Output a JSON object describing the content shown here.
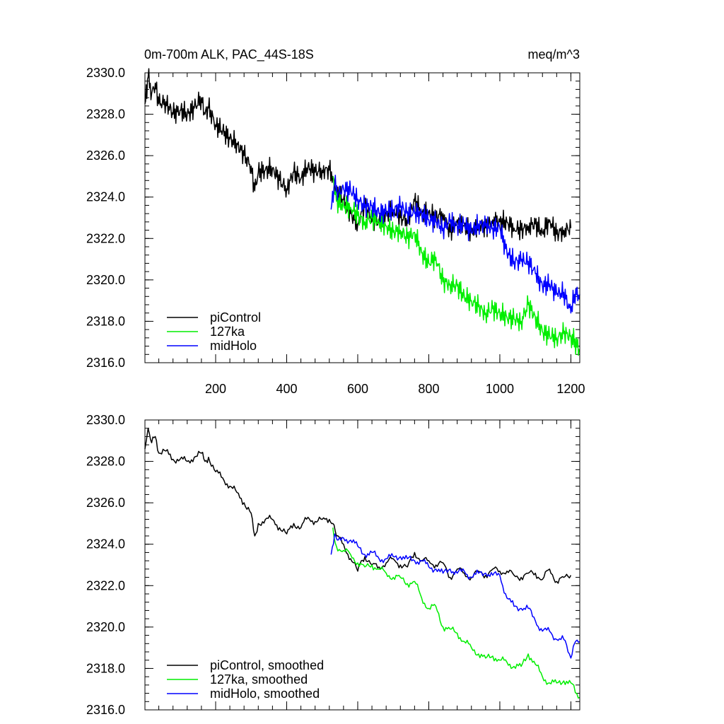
{
  "chart_data": [
    {
      "type": "line",
      "title_left": "0m-700m ALK, PAC_44S-18S",
      "title_right": "meq/m^3",
      "xlabel": "",
      "ylabel": "",
      "xlim": [
        1,
        1225
      ],
      "ylim": [
        2316.0,
        2330.0
      ],
      "x_ticks": [
        200,
        400,
        600,
        800,
        1000,
        1200
      ],
      "y_ticks": [
        "2330.0",
        "2328.0",
        "2326.0",
        "2324.0",
        "2322.0",
        "2320.0",
        "2318.0",
        "2316.0"
      ],
      "x_tick_labels_shown": true,
      "legend_position": "bottom-left",
      "series": [
        {
          "name": "piControl",
          "color": "#000000",
          "x": [
            1,
            10,
            20,
            30,
            40,
            60,
            80,
            100,
            120,
            140,
            160,
            170,
            180,
            200,
            220,
            240,
            260,
            280,
            300,
            310,
            320,
            340,
            360,
            380,
            400,
            420,
            440,
            460,
            480,
            500,
            520,
            530,
            540,
            560,
            580,
            600,
            610,
            620,
            640,
            660,
            680,
            700,
            720,
            740,
            760,
            780,
            800,
            820,
            840,
            860,
            880,
            900,
            920,
            940,
            960,
            980,
            1000,
            1020,
            1040,
            1060,
            1080,
            1100,
            1120,
            1140,
            1160,
            1180,
            1200
          ],
          "values": [
            2328.5,
            2329.8,
            2329.0,
            2329.5,
            2328.5,
            2328.6,
            2328.0,
            2328.2,
            2328.0,
            2328.3,
            2328.8,
            2328.0,
            2328.3,
            2327.5,
            2327.2,
            2326.8,
            2326.6,
            2326.0,
            2325.5,
            2324.3,
            2325.2,
            2325.3,
            2325.4,
            2324.8,
            2324.4,
            2325.2,
            2324.9,
            2325.5,
            2325.2,
            2325.3,
            2325.3,
            2325.0,
            2324.3,
            2323.9,
            2323.2,
            2322.7,
            2323.3,
            2323.5,
            2323.0,
            2322.8,
            2323.2,
            2323.4,
            2323.0,
            2322.9,
            2323.8,
            2323.3,
            2323.3,
            2323.0,
            2323.2,
            2322.3,
            2322.9,
            2322.6,
            2322.3,
            2322.7,
            2322.5,
            2322.9,
            2322.8,
            2322.8,
            2322.5,
            2322.4,
            2322.6,
            2322.7,
            2322.3,
            2322.9,
            2322.2,
            2322.4,
            2322.5
          ]
        },
        {
          "name": "127ka",
          "color": "#00ee00",
          "x": [
            530,
            540,
            560,
            580,
            600,
            620,
            640,
            660,
            680,
            700,
            720,
            740,
            760,
            780,
            800,
            820,
            840,
            860,
            880,
            900,
            920,
            940,
            960,
            980,
            1000,
            1020,
            1040,
            1060,
            1080,
            1100,
            1120,
            1140,
            1160,
            1180,
            1200,
            1225
          ],
          "values": [
            2325.0,
            2323.8,
            2323.6,
            2323.5,
            2323.1,
            2322.8,
            2323.0,
            2322.8,
            2322.6,
            2322.3,
            2322.4,
            2322.0,
            2322.3,
            2321.3,
            2320.8,
            2321.1,
            2319.9,
            2319.8,
            2319.7,
            2319.2,
            2319.0,
            2318.7,
            2318.4,
            2318.6,
            2318.4,
            2318.2,
            2318.1,
            2318.0,
            2318.8,
            2318.2,
            2317.5,
            2317.3,
            2317.2,
            2317.4,
            2317.3,
            2316.6
          ]
        },
        {
          "name": "midHolo",
          "color": "#0000ff",
          "x": [
            525,
            535,
            545,
            560,
            580,
            600,
            620,
            640,
            660,
            680,
            700,
            720,
            740,
            760,
            780,
            800,
            820,
            840,
            860,
            880,
            900,
            920,
            940,
            960,
            980,
            1000,
            1020,
            1040,
            1060,
            1080,
            1100,
            1120,
            1140,
            1160,
            1180,
            1200,
            1210,
            1225
          ],
          "values": [
            2323.4,
            2324.6,
            2324.2,
            2324.4,
            2324.3,
            2323.9,
            2323.5,
            2323.6,
            2323.2,
            2323.3,
            2323.4,
            2323.5,
            2323.3,
            2323.2,
            2323.2,
            2322.9,
            2322.8,
            2322.5,
            2322.8,
            2322.6,
            2322.7,
            2322.3,
            2322.7,
            2322.6,
            2322.5,
            2322.5,
            2321.3,
            2320.9,
            2320.9,
            2320.9,
            2320.3,
            2319.7,
            2319.8,
            2319.3,
            2319.4,
            2318.4,
            2319.3,
            2319.3
          ]
        }
      ]
    },
    {
      "type": "line",
      "xlabel": "",
      "ylabel": "",
      "xlim": [
        1,
        1225
      ],
      "ylim": [
        2316.0,
        2330.0
      ],
      "x_ticks": [
        200,
        400,
        600,
        800,
        1000,
        1200
      ],
      "y_ticks": [
        "2330.0",
        "2328.0",
        "2326.0",
        "2324.0",
        "2322.0",
        "2320.0",
        "2318.0",
        "2316.0"
      ],
      "x_tick_labels_shown": false,
      "legend_position": "bottom-left",
      "series": [
        {
          "name": "piControl, smoothed",
          "color": "#000000",
          "x": [
            1,
            10,
            20,
            30,
            40,
            60,
            80,
            100,
            120,
            140,
            160,
            170,
            180,
            200,
            220,
            240,
            260,
            280,
            300,
            310,
            320,
            340,
            360,
            380,
            400,
            420,
            440,
            460,
            480,
            500,
            520,
            530,
            540,
            560,
            580,
            600,
            610,
            620,
            640,
            660,
            680,
            700,
            720,
            740,
            760,
            780,
            800,
            820,
            840,
            860,
            880,
            900,
            920,
            940,
            960,
            980,
            1000,
            1020,
            1040,
            1060,
            1080,
            1100,
            1120,
            1140,
            1160,
            1180,
            1200
          ],
          "values": [
            2328.6,
            2329.6,
            2328.9,
            2329.2,
            2328.4,
            2328.5,
            2328.1,
            2328.1,
            2328.0,
            2328.2,
            2328.4,
            2328.0,
            2328.2,
            2327.5,
            2327.2,
            2326.8,
            2326.5,
            2326.0,
            2325.5,
            2324.4,
            2325.0,
            2325.2,
            2325.2,
            2324.8,
            2324.5,
            2325.0,
            2324.8,
            2325.3,
            2325.1,
            2325.2,
            2325.2,
            2325.0,
            2324.4,
            2324.0,
            2323.3,
            2322.7,
            2323.2,
            2323.4,
            2323.0,
            2322.9,
            2323.1,
            2323.3,
            2323.0,
            2322.9,
            2323.6,
            2323.2,
            2323.2,
            2323.0,
            2323.1,
            2322.4,
            2322.8,
            2322.6,
            2322.4,
            2322.7,
            2322.5,
            2322.8,
            2322.7,
            2322.7,
            2322.5,
            2322.4,
            2322.6,
            2322.6,
            2322.3,
            2322.8,
            2322.2,
            2322.4,
            2322.5
          ]
        },
        {
          "name": "127ka, smoothed",
          "color": "#00ee00",
          "x": [
            530,
            540,
            560,
            580,
            600,
            620,
            640,
            660,
            680,
            700,
            720,
            740,
            760,
            780,
            800,
            820,
            840,
            860,
            880,
            900,
            920,
            940,
            960,
            980,
            1000,
            1020,
            1040,
            1060,
            1080,
            1100,
            1120,
            1140,
            1160,
            1180,
            1200,
            1225
          ],
          "values": [
            2324.8,
            2323.9,
            2323.7,
            2323.5,
            2323.1,
            2322.9,
            2323.0,
            2322.8,
            2322.6,
            2322.4,
            2322.4,
            2322.1,
            2322.2,
            2321.4,
            2320.9,
            2321.0,
            2320.0,
            2319.9,
            2319.7,
            2319.3,
            2319.0,
            2318.7,
            2318.5,
            2318.6,
            2318.4,
            2318.3,
            2318.1,
            2318.1,
            2318.7,
            2318.2,
            2317.6,
            2317.3,
            2317.3,
            2317.4,
            2317.3,
            2316.6
          ]
        },
        {
          "name": "midHolo, smoothed",
          "color": "#0000ff",
          "x": [
            525,
            535,
            545,
            560,
            580,
            600,
            620,
            640,
            660,
            680,
            700,
            720,
            740,
            760,
            780,
            800,
            820,
            840,
            860,
            880,
            900,
            920,
            940,
            960,
            980,
            1000,
            1020,
            1040,
            1060,
            1080,
            1100,
            1120,
            1140,
            1160,
            1180,
            1200,
            1210,
            1225
          ],
          "values": [
            2323.5,
            2324.5,
            2324.2,
            2324.3,
            2324.2,
            2323.9,
            2323.5,
            2323.6,
            2323.3,
            2323.3,
            2323.4,
            2323.4,
            2323.3,
            2323.2,
            2323.2,
            2322.9,
            2322.8,
            2322.6,
            2322.8,
            2322.6,
            2322.7,
            2322.4,
            2322.6,
            2322.6,
            2322.5,
            2322.5,
            2321.4,
            2321.0,
            2320.9,
            2320.9,
            2320.3,
            2319.8,
            2319.8,
            2319.4,
            2319.4,
            2318.5,
            2319.2,
            2319.3
          ]
        }
      ]
    }
  ]
}
